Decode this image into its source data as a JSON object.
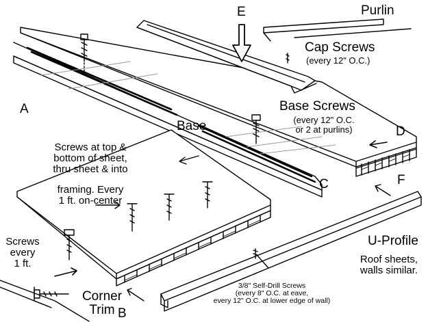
{
  "labels": {
    "purlin": "Purlin",
    "letter_e": "E",
    "letter_a": "A",
    "letter_b": "B",
    "letter_c": "C",
    "letter_d": "D",
    "letter_f": "F",
    "cap_screws": "Cap Screws",
    "cap_screws_spacing": "(every 12\" O.C.)",
    "base_screws": "Base Screws",
    "base_screws_spacing_1": "(every 12\" O.C.",
    "base_screws_spacing_2": "or 2 at purlins)",
    "base": "Base",
    "screws_note_1": "Screws at top &",
    "screws_note_2": "bottom of sheet,",
    "screws_note_3": "thru sheet & into",
    "screws_note_4": "framing. Every",
    "screws_note_5": "1 ft. on-center",
    "screws_every_1": "Screws",
    "screws_every_2": "every",
    "screws_every_3": "1 ft.",
    "corner_trim_1": "Corner",
    "corner_trim_2": "Trim",
    "u_profile": "U-Profile",
    "roof_sheets_1": "Roof sheets,",
    "roof_sheets_2": "walls similar.",
    "self_drill_1": "3/8\" Self-Drill Screws",
    "self_drill_2": "(every 8\" O.C. at eave,",
    "self_drill_3": "every 12\" O.C. at lower edge of wall)"
  },
  "colors": {
    "ink": "#000000",
    "paper": "#ffffff",
    "hatch": "#9a9a9a"
  }
}
